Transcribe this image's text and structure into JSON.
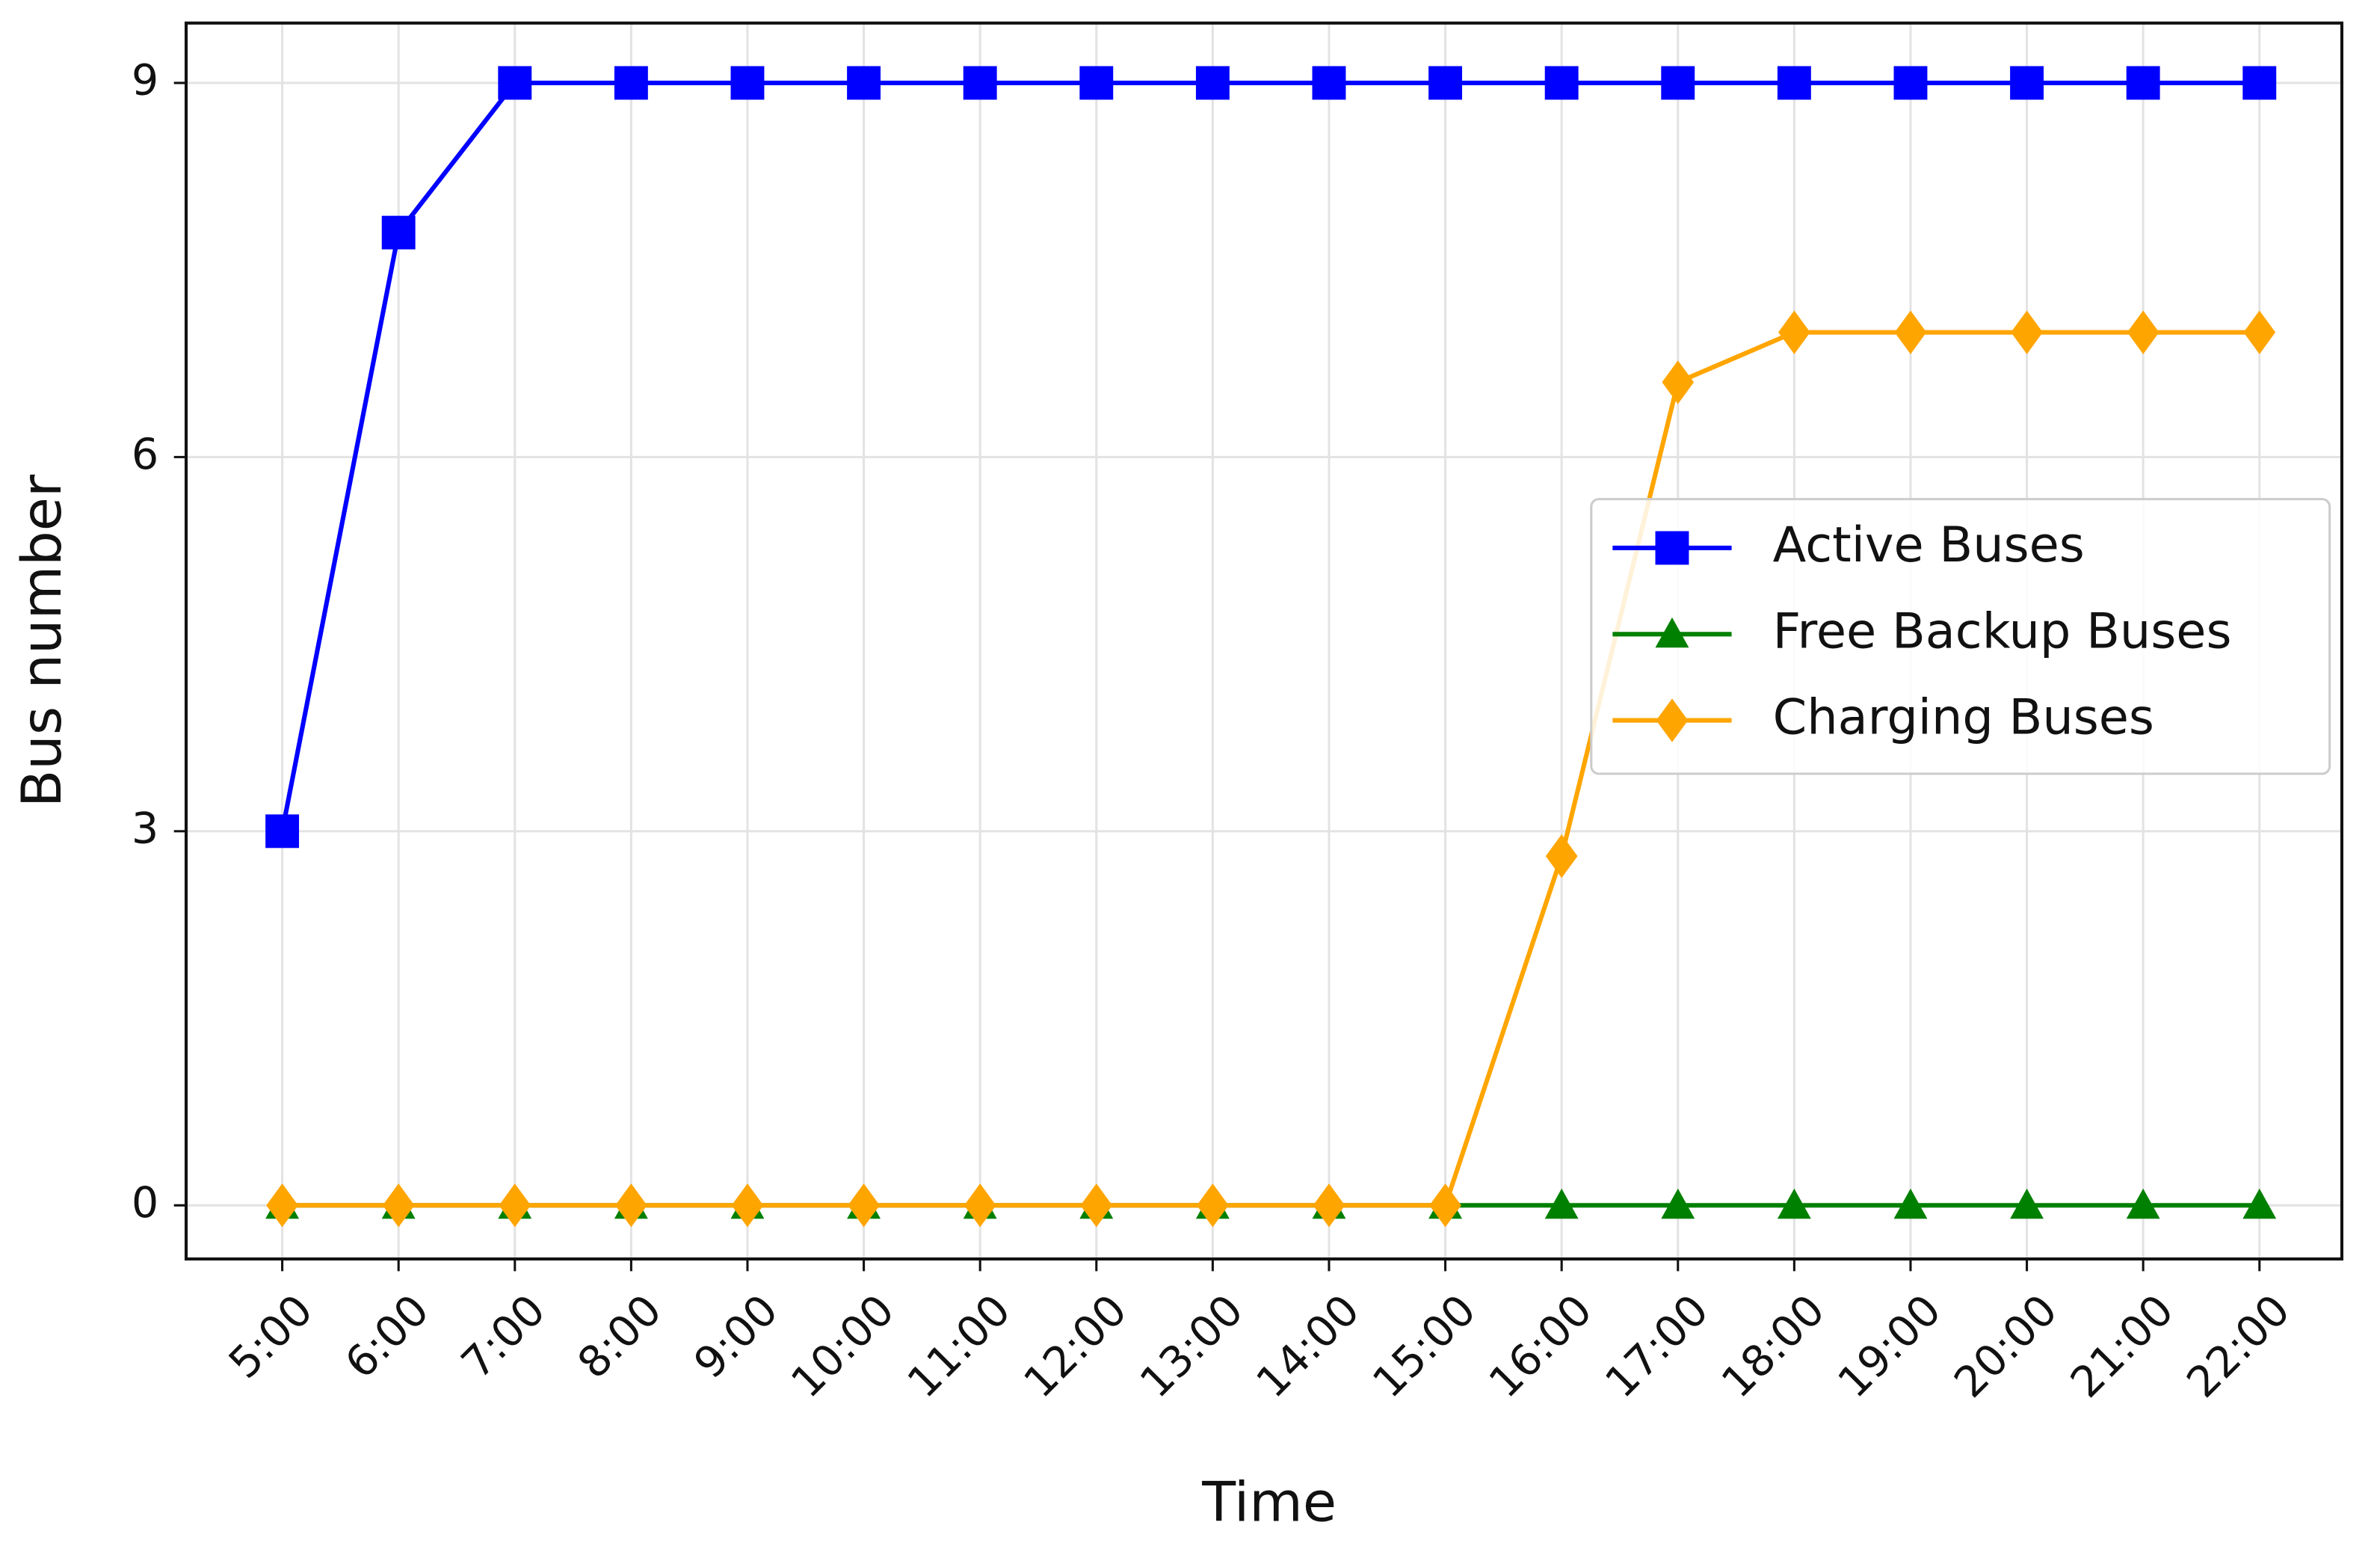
{
  "chart_data": {
    "type": "line",
    "x_label": "Time",
    "y_label": "Bus number",
    "categories": [
      "5:00",
      "6:00",
      "7:00",
      "8:00",
      "9:00",
      "10:00",
      "11:00",
      "12:00",
      "13:00",
      "14:00",
      "15:00",
      "16:00",
      "17:00",
      "18:00",
      "19:00",
      "20:00",
      "21:00",
      "22:00"
    ],
    "series": [
      {
        "name": "Active Buses",
        "color": "#0000ff",
        "marker": "square",
        "values": [
          3,
          7.8,
          9,
          9,
          9,
          9,
          9,
          9,
          9,
          9,
          9,
          9,
          9,
          9,
          9,
          9,
          9,
          9
        ]
      },
      {
        "name": "Free Backup Buses",
        "color": "#008000",
        "marker": "triangle",
        "values": [
          0,
          0,
          0,
          0,
          0,
          0,
          0,
          0,
          0,
          0,
          0,
          0,
          0,
          0,
          0,
          0,
          0,
          0
        ]
      },
      {
        "name": "Charging Buses",
        "color": "#ffa500",
        "marker": "diamond",
        "values": [
          0,
          0,
          0,
          0,
          0,
          0,
          0,
          0,
          0,
          0,
          0,
          2.8,
          6.6,
          7,
          7,
          7,
          7,
          7
        ]
      }
    ],
    "ylim": [
      -0.43,
      9.48
    ],
    "yticks": [
      0,
      3,
      6,
      9
    ],
    "grid": true,
    "legend": "center right"
  }
}
